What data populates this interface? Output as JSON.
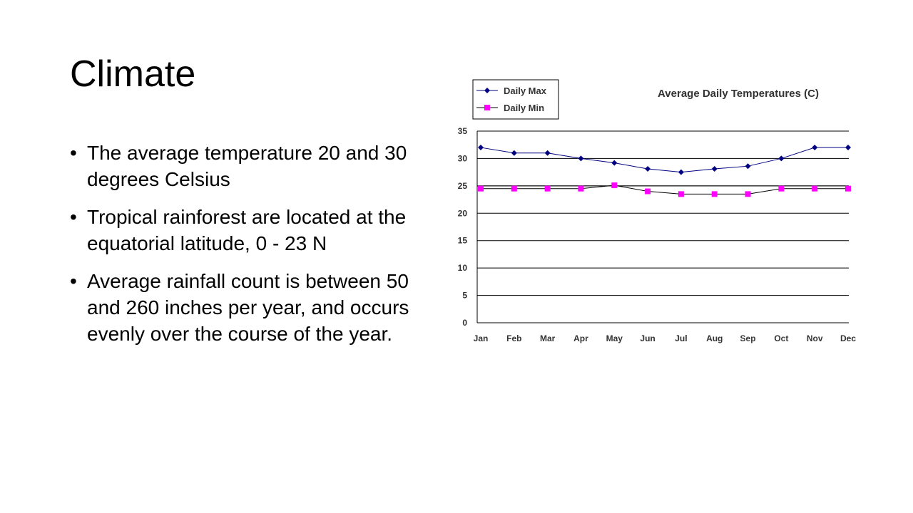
{
  "slide": {
    "title": "Climate",
    "bullets": [
      "The average temperature 20 and 30 degrees Celsius",
      "Tropical rainforest are located at the equatorial latitude, 0 - 23 N",
      "Average rainfall count is between 50 and 260 inches per year, and  occurs evenly over the course of the year."
    ],
    "bullet_char": "•"
  },
  "chart_data": {
    "type": "line",
    "title": "Average Daily Temperatures (C)",
    "xlabel": "",
    "ylabel": "",
    "categories": [
      "Jan",
      "Feb",
      "Mar",
      "Apr",
      "May",
      "Jun",
      "Jul",
      "Aug",
      "Sep",
      "Oct",
      "Nov",
      "Dec"
    ],
    "ylim": [
      0,
      35
    ],
    "yticks": [
      0,
      5,
      10,
      15,
      20,
      25,
      30,
      35
    ],
    "grid": "horizontal",
    "legend_position": "top-left",
    "series": [
      {
        "name": "Daily Max",
        "color": "#000080",
        "marker": "diamond",
        "values": [
          32,
          31,
          31,
          30,
          29.2,
          28.1,
          27.5,
          28.1,
          28.6,
          30,
          32,
          32
        ]
      },
      {
        "name": "Daily Min",
        "color": "#ff00ff",
        "marker": "square",
        "values": [
          24.5,
          24.5,
          24.5,
          24.5,
          25.1,
          24,
          23.5,
          23.5,
          23.5,
          24.5,
          24.5,
          24.5
        ]
      }
    ],
    "reference_line": 25
  }
}
